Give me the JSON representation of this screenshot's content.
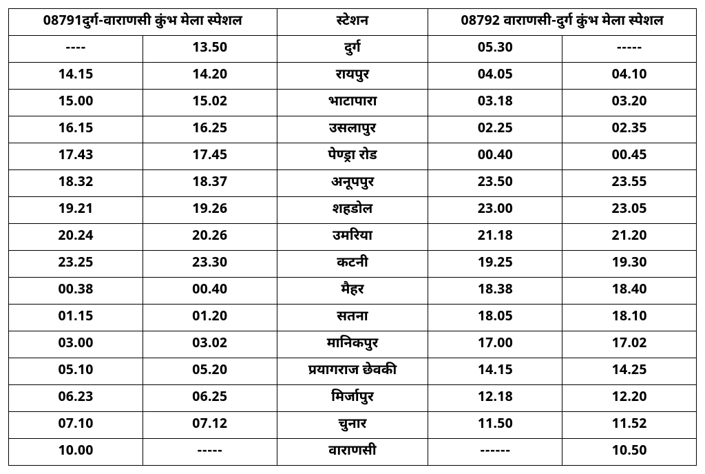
{
  "table": {
    "headers": {
      "left": "08791दुर्ग-वाराणसी कुंभ मेला स्पेशल",
      "station": "स्टेशन",
      "right": "08792 वाराणसी-दुर्ग कुंभ मेला स्पेशल"
    },
    "rows": [
      {
        "c1": "----",
        "c2": "13.50",
        "station": "दुर्ग",
        "c4": "05.30",
        "c5": "-----"
      },
      {
        "c1": "14.15",
        "c2": "14.20",
        "station": "रायपुर",
        "c4": "04.05",
        "c5": "04.10"
      },
      {
        "c1": "15.00",
        "c2": "15.02",
        "station": "भाटापारा",
        "c4": "03.18",
        "c5": "03.20"
      },
      {
        "c1": "16.15",
        "c2": "16.25",
        "station": "उसलापुर",
        "c4": "02.25",
        "c5": "02.35"
      },
      {
        "c1": "17.43",
        "c2": "17.45",
        "station": "पेण्ड्रा रोड",
        "c4": "00.40",
        "c5": "00.45"
      },
      {
        "c1": "18.32",
        "c2": "18.37",
        "station": "अनूपपुर",
        "c4": "23.50",
        "c5": "23.55"
      },
      {
        "c1": "19.21",
        "c2": "19.26",
        "station": "शहडोल",
        "c4": "23.00",
        "c5": "23.05"
      },
      {
        "c1": "20.24",
        "c2": "20.26",
        "station": "उमरिया",
        "c4": "21.18",
        "c5": "21.20"
      },
      {
        "c1": "23.25",
        "c2": "23.30",
        "station": "कटनी",
        "c4": "19.25",
        "c5": "19.30"
      },
      {
        "c1": "00.38",
        "c2": "00.40",
        "station": "मैहर",
        "c4": "18.38",
        "c5": "18.40"
      },
      {
        "c1": "01.15",
        "c2": "01.20",
        "station": "सतना",
        "c4": "18.05",
        "c5": "18.10"
      },
      {
        "c1": "03.00",
        "c2": "03.02",
        "station": "मानिकपुर",
        "c4": "17.00",
        "c5": "17.02"
      },
      {
        "c1": "05.10",
        "c2": "05.20",
        "station": "प्रयागराज छेवकी",
        "c4": "14.15",
        "c5": "14.25"
      },
      {
        "c1": "06.23",
        "c2": "06.25",
        "station": "मिर्जापुर",
        "c4": "12.18",
        "c5": "12.20"
      },
      {
        "c1": "07.10",
        "c2": "07.12",
        "station": "चुनार",
        "c4": "11.50",
        "c5": "11.52"
      },
      {
        "c1": "10.00",
        "c2": "-----",
        "station": "वाराणसी",
        "c4": "------",
        "c5": "10.50"
      }
    ],
    "styling": {
      "border_color": "#000000",
      "background_color": "#ffffff",
      "text_color": "#000000",
      "font_weight": "bold",
      "header_fontsize": 20,
      "cell_fontsize": 20,
      "column_widths_pct": [
        19.5,
        19.5,
        22,
        19.5,
        19.5
      ]
    }
  }
}
